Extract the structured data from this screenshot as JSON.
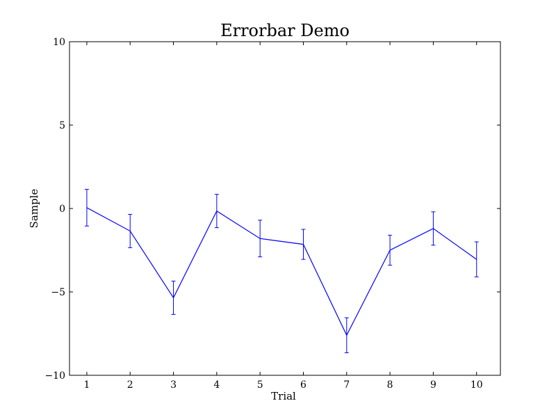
{
  "chart_data": {
    "type": "line",
    "title": "Errorbar Demo",
    "xlabel": "Trial",
    "ylabel": "Sample",
    "xlim": [
      0.6,
      10.55
    ],
    "ylim": [
      -10,
      10
    ],
    "xticks": [
      1,
      2,
      3,
      4,
      5,
      6,
      7,
      8,
      9,
      10
    ],
    "xtick_labels": [
      "1",
      "2",
      "3",
      "4",
      "5",
      "6",
      "7",
      "8",
      "9",
      "10"
    ],
    "yticks": [
      -10,
      -5,
      0,
      5,
      10
    ],
    "ytick_labels": [
      "−10",
      "−5",
      "0",
      "5",
      "10"
    ],
    "grid": false,
    "line_color": "#0000ff",
    "series": [
      {
        "x": [
          1,
          2,
          3,
          4,
          5,
          6,
          7,
          8,
          9,
          10
        ],
        "y": [
          0.05,
          -1.35,
          -5.35,
          -0.15,
          -1.8,
          -2.15,
          -7.6,
          -2.5,
          -1.2,
          -3.05
        ],
        "yerr": [
          1.1,
          1.0,
          1.0,
          1.0,
          1.1,
          0.9,
          1.05,
          0.9,
          1.0,
          1.05
        ]
      }
    ]
  }
}
